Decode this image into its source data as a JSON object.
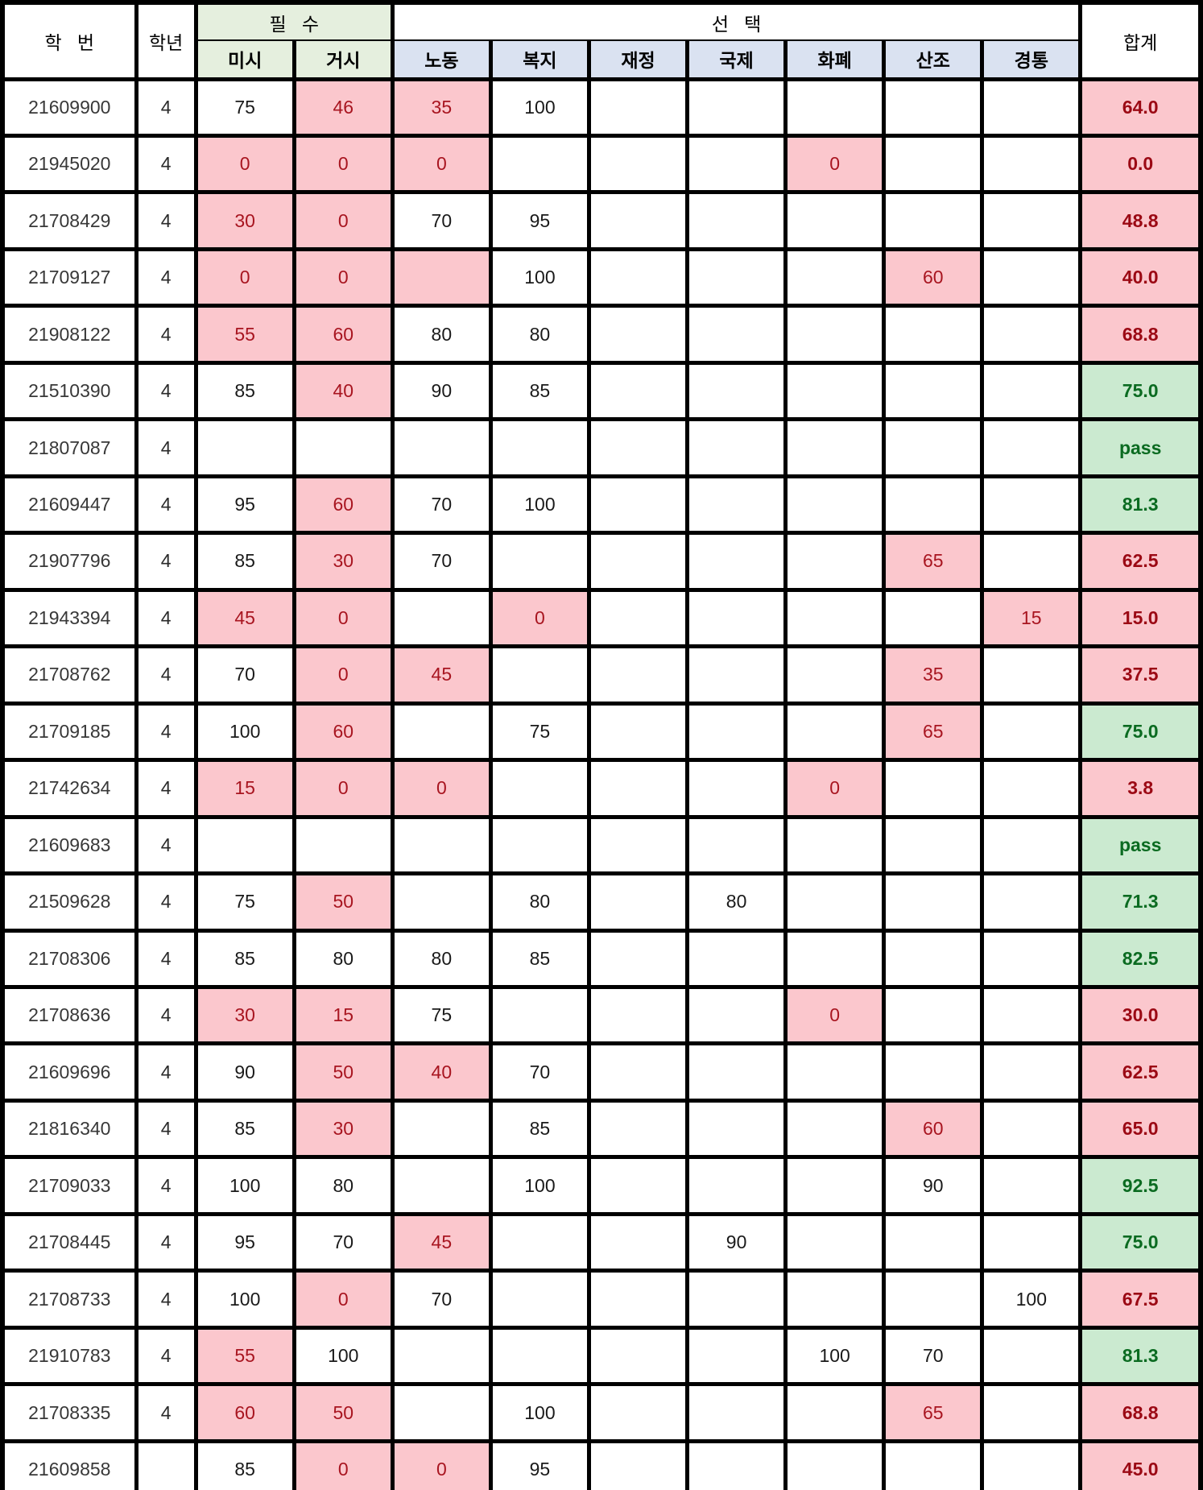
{
  "table": {
    "header": {
      "student_id": "학   번",
      "grade": "학년",
      "required_group": "필   수",
      "elective_group": "선   택",
      "total": "합계"
    },
    "subjects": [
      "미시",
      "거시",
      "노동",
      "복지",
      "재정",
      "국제",
      "화폐",
      "산조",
      "경통"
    ],
    "colors": {
      "required_header_bg": "#E5EFDE",
      "elective_header_bg": "#DAE2F1",
      "highlight_cell_bg": "#FBC7CD",
      "highlight_cell_text": "#A81520",
      "total_bad_bg": "#FBC7CD",
      "total_bad_text": "#9B0914",
      "total_good_bg": "#CBEAD0",
      "total_good_text": "#0B6B21",
      "grid_border": "#000000"
    },
    "rows": [
      {
        "id": "21609900",
        "grade": "4",
        "scores": [
          [
            "75",
            0
          ],
          [
            "46",
            1
          ],
          [
            "35",
            1
          ],
          [
            "100",
            0
          ],
          [
            "",
            0
          ],
          [
            "",
            0
          ],
          [
            "",
            0
          ],
          [
            "",
            0
          ],
          [
            "",
            0
          ]
        ],
        "total": [
          "64.0",
          "bad"
        ]
      },
      {
        "id": "21945020",
        "grade": "4",
        "scores": [
          [
            "0",
            1
          ],
          [
            "0",
            1
          ],
          [
            "0",
            1
          ],
          [
            "",
            0
          ],
          [
            "",
            0
          ],
          [
            "",
            0
          ],
          [
            "0",
            1
          ],
          [
            "",
            0
          ],
          [
            "",
            0
          ]
        ],
        "total": [
          "0.0",
          "bad"
        ]
      },
      {
        "id": "21708429",
        "grade": "4",
        "scores": [
          [
            "30",
            1
          ],
          [
            "0",
            1
          ],
          [
            "70",
            0
          ],
          [
            "95",
            0
          ],
          [
            "",
            0
          ],
          [
            "",
            0
          ],
          [
            "",
            0
          ],
          [
            "",
            0
          ],
          [
            "",
            0
          ]
        ],
        "total": [
          "48.8",
          "bad"
        ]
      },
      {
        "id": "21709127",
        "grade": "4",
        "scores": [
          [
            "0",
            1
          ],
          [
            "0",
            1
          ],
          [
            "",
            1
          ],
          [
            "100",
            0
          ],
          [
            "",
            0
          ],
          [
            "",
            0
          ],
          [
            "",
            0
          ],
          [
            "60",
            1
          ],
          [
            "",
            0
          ]
        ],
        "total": [
          "40.0",
          "bad"
        ]
      },
      {
        "id": "21908122",
        "grade": "4",
        "scores": [
          [
            "55",
            1
          ],
          [
            "60",
            1
          ],
          [
            "80",
            0
          ],
          [
            "80",
            0
          ],
          [
            "",
            0
          ],
          [
            "",
            0
          ],
          [
            "",
            0
          ],
          [
            "",
            0
          ],
          [
            "",
            0
          ]
        ],
        "total": [
          "68.8",
          "bad"
        ]
      },
      {
        "id": "21510390",
        "grade": "4",
        "scores": [
          [
            "85",
            0
          ],
          [
            "40",
            1
          ],
          [
            "90",
            0
          ],
          [
            "85",
            0
          ],
          [
            "",
            0
          ],
          [
            "",
            0
          ],
          [
            "",
            0
          ],
          [
            "",
            0
          ],
          [
            "",
            0
          ]
        ],
        "total": [
          "75.0",
          "good"
        ]
      },
      {
        "id": "21807087",
        "grade": "4",
        "scores": [
          [
            "",
            0
          ],
          [
            "",
            0
          ],
          [
            "",
            0
          ],
          [
            "",
            0
          ],
          [
            "",
            0
          ],
          [
            "",
            0
          ],
          [
            "",
            0
          ],
          [
            "",
            0
          ],
          [
            "",
            0
          ]
        ],
        "total": [
          "pass",
          "good"
        ]
      },
      {
        "id": "21609447",
        "grade": "4",
        "scores": [
          [
            "95",
            0
          ],
          [
            "60",
            1
          ],
          [
            "70",
            0
          ],
          [
            "100",
            0
          ],
          [
            "",
            0
          ],
          [
            "",
            0
          ],
          [
            "",
            0
          ],
          [
            "",
            0
          ],
          [
            "",
            0
          ]
        ],
        "total": [
          "81.3",
          "good"
        ]
      },
      {
        "id": "21907796",
        "grade": "4",
        "scores": [
          [
            "85",
            0
          ],
          [
            "30",
            1
          ],
          [
            "70",
            0
          ],
          [
            "",
            0
          ],
          [
            "",
            0
          ],
          [
            "",
            0
          ],
          [
            "",
            0
          ],
          [
            "65",
            1
          ],
          [
            "",
            0
          ]
        ],
        "total": [
          "62.5",
          "bad"
        ]
      },
      {
        "id": "21943394",
        "grade": "4",
        "scores": [
          [
            "45",
            1
          ],
          [
            "0",
            1
          ],
          [
            "",
            0
          ],
          [
            "0",
            1
          ],
          [
            "",
            0
          ],
          [
            "",
            0
          ],
          [
            "",
            0
          ],
          [
            "",
            0
          ],
          [
            "15",
            1
          ]
        ],
        "total": [
          "15.0",
          "bad"
        ]
      },
      {
        "id": "21708762",
        "grade": "4",
        "scores": [
          [
            "70",
            0
          ],
          [
            "0",
            1
          ],
          [
            "45",
            1
          ],
          [
            "",
            0
          ],
          [
            "",
            0
          ],
          [
            "",
            0
          ],
          [
            "",
            0
          ],
          [
            "35",
            1
          ],
          [
            "",
            0
          ]
        ],
        "total": [
          "37.5",
          "bad"
        ]
      },
      {
        "id": "21709185",
        "grade": "4",
        "scores": [
          [
            "100",
            0
          ],
          [
            "60",
            1
          ],
          [
            "",
            0
          ],
          [
            "75",
            0
          ],
          [
            "",
            0
          ],
          [
            "",
            0
          ],
          [
            "",
            0
          ],
          [
            "65",
            1
          ],
          [
            "",
            0
          ]
        ],
        "total": [
          "75.0",
          "good"
        ]
      },
      {
        "id": "21742634",
        "grade": "4",
        "scores": [
          [
            "15",
            1
          ],
          [
            "0",
            1
          ],
          [
            "0",
            1
          ],
          [
            "",
            0
          ],
          [
            "",
            0
          ],
          [
            "",
            0
          ],
          [
            "0",
            1
          ],
          [
            "",
            0
          ],
          [
            "",
            0
          ]
        ],
        "total": [
          "3.8",
          "bad"
        ]
      },
      {
        "id": "21609683",
        "grade": "4",
        "scores": [
          [
            "",
            0
          ],
          [
            "",
            0
          ],
          [
            "",
            0
          ],
          [
            "",
            0
          ],
          [
            "",
            0
          ],
          [
            "",
            0
          ],
          [
            "",
            0
          ],
          [
            "",
            0
          ],
          [
            "",
            0
          ]
        ],
        "total": [
          "pass",
          "good"
        ]
      },
      {
        "id": "21509628",
        "grade": "4",
        "scores": [
          [
            "75",
            0
          ],
          [
            "50",
            1
          ],
          [
            "",
            0
          ],
          [
            "80",
            0
          ],
          [
            "",
            0
          ],
          [
            "80",
            0
          ],
          [
            "",
            0
          ],
          [
            "",
            0
          ],
          [
            "",
            0
          ]
        ],
        "total": [
          "71.3",
          "good"
        ]
      },
      {
        "id": "21708306",
        "grade": "4",
        "scores": [
          [
            "85",
            0
          ],
          [
            "80",
            0
          ],
          [
            "80",
            0
          ],
          [
            "85",
            0
          ],
          [
            "",
            0
          ],
          [
            "",
            0
          ],
          [
            "",
            0
          ],
          [
            "",
            0
          ],
          [
            "",
            0
          ]
        ],
        "total": [
          "82.5",
          "good"
        ]
      },
      {
        "id": "21708636",
        "grade": "4",
        "scores": [
          [
            "30",
            1
          ],
          [
            "15",
            1
          ],
          [
            "75",
            0
          ],
          [
            "",
            0
          ],
          [
            "",
            0
          ],
          [
            "",
            0
          ],
          [
            "0",
            1
          ],
          [
            "",
            0
          ],
          [
            "",
            0
          ]
        ],
        "total": [
          "30.0",
          "bad"
        ]
      },
      {
        "id": "21609696",
        "grade": "4",
        "scores": [
          [
            "90",
            0
          ],
          [
            "50",
            1
          ],
          [
            "40",
            1
          ],
          [
            "70",
            0
          ],
          [
            "",
            0
          ],
          [
            "",
            0
          ],
          [
            "",
            0
          ],
          [
            "",
            0
          ],
          [
            "",
            0
          ]
        ],
        "total": [
          "62.5",
          "bad"
        ]
      },
      {
        "id": "21816340",
        "grade": "4",
        "scores": [
          [
            "85",
            0
          ],
          [
            "30",
            1
          ],
          [
            "",
            0
          ],
          [
            "85",
            0
          ],
          [
            "",
            0
          ],
          [
            "",
            0
          ],
          [
            "",
            0
          ],
          [
            "60",
            1
          ],
          [
            "",
            0
          ]
        ],
        "total": [
          "65.0",
          "bad"
        ]
      },
      {
        "id": "21709033",
        "grade": "4",
        "scores": [
          [
            "100",
            0
          ],
          [
            "80",
            0
          ],
          [
            "",
            0
          ],
          [
            "100",
            0
          ],
          [
            "",
            0
          ],
          [
            "",
            0
          ],
          [
            "",
            0
          ],
          [
            "90",
            0
          ],
          [
            "",
            0
          ]
        ],
        "total": [
          "92.5",
          "good"
        ]
      },
      {
        "id": "21708445",
        "grade": "4",
        "scores": [
          [
            "95",
            0
          ],
          [
            "70",
            0
          ],
          [
            "45",
            1
          ],
          [
            "",
            0
          ],
          [
            "",
            0
          ],
          [
            "90",
            0
          ],
          [
            "",
            0
          ],
          [
            "",
            0
          ],
          [
            "",
            0
          ]
        ],
        "total": [
          "75.0",
          "good"
        ]
      },
      {
        "id": "21708733",
        "grade": "4",
        "scores": [
          [
            "100",
            0
          ],
          [
            "0",
            1
          ],
          [
            "70",
            0
          ],
          [
            "",
            0
          ],
          [
            "",
            0
          ],
          [
            "",
            0
          ],
          [
            "",
            0
          ],
          [
            "",
            0
          ],
          [
            "100",
            0
          ]
        ],
        "total": [
          "67.5",
          "bad"
        ]
      },
      {
        "id": "21910783",
        "grade": "4",
        "scores": [
          [
            "55",
            1
          ],
          [
            "100",
            0
          ],
          [
            "",
            0
          ],
          [
            "",
            0
          ],
          [
            "",
            0
          ],
          [
            "",
            0
          ],
          [
            "100",
            0
          ],
          [
            "70",
            0
          ],
          [
            "",
            0
          ]
        ],
        "total": [
          "81.3",
          "good"
        ]
      },
      {
        "id": "21708335",
        "grade": "4",
        "scores": [
          [
            "60",
            1
          ],
          [
            "50",
            1
          ],
          [
            "",
            0
          ],
          [
            "100",
            0
          ],
          [
            "",
            0
          ],
          [
            "",
            0
          ],
          [
            "",
            0
          ],
          [
            "65",
            1
          ],
          [
            "",
            0
          ]
        ],
        "total": [
          "68.8",
          "bad"
        ]
      },
      {
        "id": "21609858",
        "grade": "",
        "scores": [
          [
            "85",
            0
          ],
          [
            "0",
            1
          ],
          [
            "0",
            1
          ],
          [
            "95",
            0
          ],
          [
            "",
            0
          ],
          [
            "",
            0
          ],
          [
            "",
            0
          ],
          [
            "",
            0
          ],
          [
            "",
            0
          ]
        ],
        "total": [
          "45.0",
          "bad"
        ]
      }
    ]
  }
}
